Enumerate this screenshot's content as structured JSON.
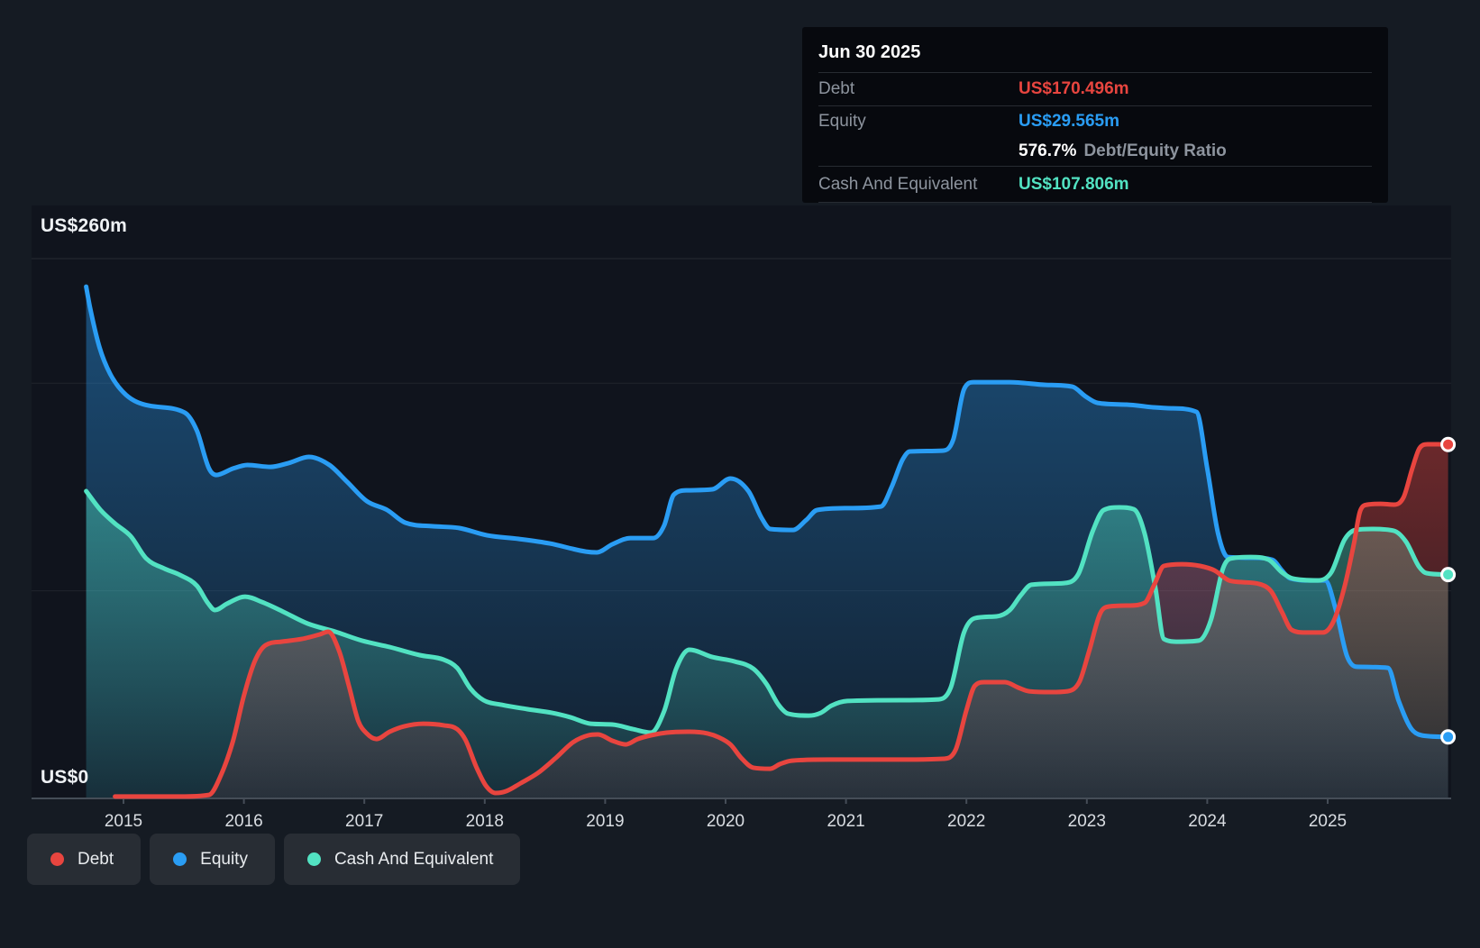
{
  "y_axis": {
    "top_label": "US$260m",
    "bottom_label": "US$0"
  },
  "x_axis": {
    "years": [
      "2015",
      "2016",
      "2017",
      "2018",
      "2019",
      "2020",
      "2021",
      "2022",
      "2023",
      "2024",
      "2025"
    ]
  },
  "tooltip": {
    "title": "Jun 30 2025",
    "debt_label": "Debt",
    "debt_value": "US$170.496m",
    "equity_label": "Equity",
    "equity_value": "US$29.565m",
    "ratio_value": "576.7%",
    "ratio_label": "Debt/Equity Ratio",
    "cash_label": "Cash And Equivalent",
    "cash_value": "US$107.806m"
  },
  "legend": {
    "debt": "Debt",
    "equity": "Equity",
    "cash": "Cash And Equivalent"
  },
  "colors": {
    "debt": "#e8453f",
    "equity": "#2a9df4",
    "cash": "#52e2c2",
    "grid": "rgba(255,255,255,0.08)",
    "axis": "#454d57"
  },
  "chart_data": {
    "type": "area",
    "title": "Debt to Equity History",
    "xlim": [
      2014.69,
      2026.0
    ],
    "ylim": [
      0,
      260
    ],
    "y_unit": "US$ millions",
    "gridline_values": [
      260,
      200,
      100
    ],
    "x_ticks": [
      2015,
      2016,
      2017,
      2018,
      2019,
      2020,
      2021,
      2022,
      2023,
      2024,
      2025
    ],
    "end_point_date": "Jun 30 2025",
    "series": [
      {
        "name": "Equity",
        "color_key": "equity",
        "end_value": 29.565,
        "points": [
          [
            2014.69,
            246.5
          ],
          [
            2014.72,
            237.0
          ],
          [
            2014.8,
            217.4
          ],
          [
            2014.89,
            204.4
          ],
          [
            2015.02,
            194.4
          ],
          [
            2015.21,
            189.2
          ],
          [
            2015.51,
            185.8
          ],
          [
            2015.61,
            177.1
          ],
          [
            2015.71,
            158.9
          ],
          [
            2015.77,
            155.8
          ],
          [
            2015.91,
            158.9
          ],
          [
            2016.03,
            160.6
          ],
          [
            2016.22,
            159.7
          ],
          [
            2016.37,
            161.5
          ],
          [
            2016.54,
            164.5
          ],
          [
            2016.71,
            160.6
          ],
          [
            2016.86,
            152.3
          ],
          [
            2017.02,
            143.2
          ],
          [
            2017.19,
            138.9
          ],
          [
            2017.34,
            132.8
          ],
          [
            2017.57,
            131.1
          ],
          [
            2017.79,
            130.2
          ],
          [
            2018.02,
            126.7
          ],
          [
            2018.28,
            125.0
          ],
          [
            2018.54,
            122.8
          ],
          [
            2018.84,
            118.9
          ],
          [
            2018.93,
            118.5
          ],
          [
            2019.06,
            122.4
          ],
          [
            2019.21,
            125.4
          ],
          [
            2019.4,
            125.4
          ],
          [
            2019.49,
            131.5
          ],
          [
            2019.57,
            146.3
          ],
          [
            2019.68,
            148.4
          ],
          [
            2019.89,
            148.9
          ],
          [
            2020.04,
            154.1
          ],
          [
            2020.19,
            148.0
          ],
          [
            2020.3,
            135.0
          ],
          [
            2020.37,
            129.8
          ],
          [
            2020.56,
            129.3
          ],
          [
            2020.67,
            134.1
          ],
          [
            2020.76,
            138.9
          ],
          [
            2021.01,
            139.8
          ],
          [
            2021.29,
            140.6
          ],
          [
            2021.38,
            150.2
          ],
          [
            2021.47,
            163.2
          ],
          [
            2021.53,
            167.1
          ],
          [
            2021.8,
            167.5
          ],
          [
            2021.89,
            172.7
          ],
          [
            2021.98,
            197.0
          ],
          [
            2022.06,
            200.5
          ],
          [
            2022.36,
            200.5
          ],
          [
            2022.66,
            199.2
          ],
          [
            2022.88,
            198.3
          ],
          [
            2022.99,
            193.6
          ],
          [
            2023.09,
            190.5
          ],
          [
            2023.33,
            189.7
          ],
          [
            2023.55,
            188.4
          ],
          [
            2023.7,
            187.9
          ],
          [
            2023.91,
            186.2
          ],
          [
            2024.0,
            158.9
          ],
          [
            2024.09,
            127.6
          ],
          [
            2024.17,
            116.3
          ],
          [
            2024.38,
            115.9
          ],
          [
            2024.54,
            115.0
          ],
          [
            2024.62,
            109.8
          ],
          [
            2024.69,
            105.9
          ],
          [
            2024.86,
            105.0
          ],
          [
            2024.98,
            105.0
          ],
          [
            2025.07,
            90.3
          ],
          [
            2025.16,
            68.6
          ],
          [
            2025.24,
            63.4
          ],
          [
            2025.5,
            62.9
          ],
          [
            2025.59,
            46.9
          ],
          [
            2025.69,
            33.9
          ],
          [
            2025.78,
            30.4
          ],
          [
            2026.0,
            29.6
          ]
        ]
      },
      {
        "name": "Cash And Equivalent",
        "color_key": "cash",
        "end_value": 107.806,
        "points": [
          [
            2014.69,
            148.0
          ],
          [
            2014.81,
            138.9
          ],
          [
            2014.93,
            132.4
          ],
          [
            2015.06,
            126.3
          ],
          [
            2015.19,
            115.5
          ],
          [
            2015.34,
            110.7
          ],
          [
            2015.47,
            107.6
          ],
          [
            2015.61,
            102.4
          ],
          [
            2015.7,
            94.2
          ],
          [
            2015.76,
            90.7
          ],
          [
            2015.86,
            93.8
          ],
          [
            2015.97,
            96.8
          ],
          [
            2016.01,
            97.2
          ],
          [
            2016.15,
            94.6
          ],
          [
            2016.33,
            89.8
          ],
          [
            2016.53,
            84.2
          ],
          [
            2016.76,
            80.3
          ],
          [
            2016.98,
            76.0
          ],
          [
            2017.21,
            72.9
          ],
          [
            2017.46,
            69.0
          ],
          [
            2017.66,
            66.8
          ],
          [
            2017.77,
            62.9
          ],
          [
            2017.88,
            53.0
          ],
          [
            2017.99,
            47.3
          ],
          [
            2018.14,
            45.1
          ],
          [
            2018.35,
            43.0
          ],
          [
            2018.56,
            41.2
          ],
          [
            2018.71,
            39.1
          ],
          [
            2018.88,
            36.0
          ],
          [
            2019.06,
            35.6
          ],
          [
            2019.23,
            33.4
          ],
          [
            2019.38,
            31.7
          ],
          [
            2019.49,
            42.1
          ],
          [
            2019.59,
            62.5
          ],
          [
            2019.7,
            71.6
          ],
          [
            2019.89,
            68.1
          ],
          [
            2020.07,
            66.0
          ],
          [
            2020.23,
            62.5
          ],
          [
            2020.34,
            55.1
          ],
          [
            2020.44,
            45.1
          ],
          [
            2020.52,
            40.8
          ],
          [
            2020.69,
            39.9
          ],
          [
            2020.79,
            41.2
          ],
          [
            2020.88,
            44.7
          ],
          [
            2021.01,
            46.9
          ],
          [
            2021.46,
            47.3
          ],
          [
            2021.77,
            47.7
          ],
          [
            2021.87,
            53.4
          ],
          [
            2021.98,
            79.9
          ],
          [
            2022.07,
            86.8
          ],
          [
            2022.25,
            87.7
          ],
          [
            2022.36,
            90.7
          ],
          [
            2022.45,
            97.7
          ],
          [
            2022.54,
            102.9
          ],
          [
            2022.81,
            103.7
          ],
          [
            2022.93,
            108.1
          ],
          [
            2023.05,
            128.9
          ],
          [
            2023.14,
            138.9
          ],
          [
            2023.27,
            140.2
          ],
          [
            2023.39,
            139.3
          ],
          [
            2023.48,
            127.6
          ],
          [
            2023.57,
            101.1
          ],
          [
            2023.64,
            76.8
          ],
          [
            2023.76,
            75.5
          ],
          [
            2023.93,
            76.0
          ],
          [
            2024.03,
            85.9
          ],
          [
            2024.13,
            110.7
          ],
          [
            2024.19,
            115.5
          ],
          [
            2024.36,
            116.3
          ],
          [
            2024.51,
            115.0
          ],
          [
            2024.62,
            108.9
          ],
          [
            2024.71,
            105.9
          ],
          [
            2024.92,
            105.0
          ],
          [
            2025.03,
            108.9
          ],
          [
            2025.14,
            124.6
          ],
          [
            2025.23,
            129.3
          ],
          [
            2025.37,
            129.8
          ],
          [
            2025.55,
            128.9
          ],
          [
            2025.65,
            123.7
          ],
          [
            2025.76,
            111.5
          ],
          [
            2025.82,
            108.5
          ],
          [
            2026.0,
            107.8
          ]
        ]
      },
      {
        "name": "Debt",
        "color_key": "debt",
        "end_value": 170.496,
        "points": [
          [
            2014.93,
            0.9
          ],
          [
            2015.17,
            0.9
          ],
          [
            2015.47,
            0.9
          ],
          [
            2015.71,
            1.7
          ],
          [
            2015.81,
            11.3
          ],
          [
            2015.91,
            27.8
          ],
          [
            2016.0,
            49.5
          ],
          [
            2016.09,
            66.0
          ],
          [
            2016.18,
            73.8
          ],
          [
            2016.31,
            75.5
          ],
          [
            2016.48,
            76.8
          ],
          [
            2016.63,
            79.0
          ],
          [
            2016.7,
            80.3
          ],
          [
            2016.79,
            71.2
          ],
          [
            2016.87,
            54.7
          ],
          [
            2016.95,
            37.3
          ],
          [
            2017.02,
            31.3
          ],
          [
            2017.1,
            28.6
          ],
          [
            2017.21,
            32.1
          ],
          [
            2017.33,
            34.7
          ],
          [
            2017.49,
            36.0
          ],
          [
            2017.66,
            35.2
          ],
          [
            2017.77,
            33.4
          ],
          [
            2017.84,
            28.2
          ],
          [
            2017.93,
            15.2
          ],
          [
            2018.01,
            6.1
          ],
          [
            2018.09,
            2.6
          ],
          [
            2018.18,
            3.5
          ],
          [
            2018.3,
            7.4
          ],
          [
            2018.44,
            12.2
          ],
          [
            2018.59,
            19.5
          ],
          [
            2018.73,
            26.9
          ],
          [
            2018.86,
            30.4
          ],
          [
            2018.94,
            30.8
          ],
          [
            2019.06,
            27.8
          ],
          [
            2019.17,
            26.0
          ],
          [
            2019.27,
            28.6
          ],
          [
            2019.38,
            30.4
          ],
          [
            2019.51,
            31.7
          ],
          [
            2019.7,
            32.1
          ],
          [
            2019.85,
            31.3
          ],
          [
            2019.94,
            29.5
          ],
          [
            2020.04,
            26.0
          ],
          [
            2020.13,
            19.5
          ],
          [
            2020.23,
            14.8
          ],
          [
            2020.37,
            14.3
          ],
          [
            2020.45,
            16.5
          ],
          [
            2020.55,
            18.2
          ],
          [
            2020.86,
            18.7
          ],
          [
            2021.46,
            18.7
          ],
          [
            2021.81,
            19.1
          ],
          [
            2021.91,
            23.4
          ],
          [
            2022.0,
            42.5
          ],
          [
            2022.07,
            54.3
          ],
          [
            2022.15,
            56.0
          ],
          [
            2022.32,
            56.0
          ],
          [
            2022.43,
            53.4
          ],
          [
            2022.52,
            51.6
          ],
          [
            2022.7,
            51.2
          ],
          [
            2022.84,
            51.6
          ],
          [
            2022.94,
            56.4
          ],
          [
            2023.02,
            71.2
          ],
          [
            2023.11,
            89.0
          ],
          [
            2023.18,
            92.4
          ],
          [
            2023.35,
            92.9
          ],
          [
            2023.48,
            94.2
          ],
          [
            2023.56,
            102.9
          ],
          [
            2023.64,
            112.0
          ],
          [
            2023.79,
            112.8
          ],
          [
            2023.94,
            112.0
          ],
          [
            2024.06,
            109.8
          ],
          [
            2024.18,
            105.0
          ],
          [
            2024.28,
            104.2
          ],
          [
            2024.43,
            103.3
          ],
          [
            2024.53,
            99.8
          ],
          [
            2024.62,
            89.8
          ],
          [
            2024.7,
            81.2
          ],
          [
            2024.81,
            79.9
          ],
          [
            2024.96,
            79.9
          ],
          [
            2025.05,
            85.5
          ],
          [
            2025.14,
            102.0
          ],
          [
            2025.22,
            123.3
          ],
          [
            2025.27,
            138.5
          ],
          [
            2025.33,
            141.5
          ],
          [
            2025.44,
            141.9
          ],
          [
            2025.55,
            141.5
          ],
          [
            2025.63,
            145.0
          ],
          [
            2025.7,
            158.4
          ],
          [
            2025.76,
            168.4
          ],
          [
            2025.83,
            170.6
          ],
          [
            2026.0,
            170.5
          ]
        ]
      }
    ]
  }
}
